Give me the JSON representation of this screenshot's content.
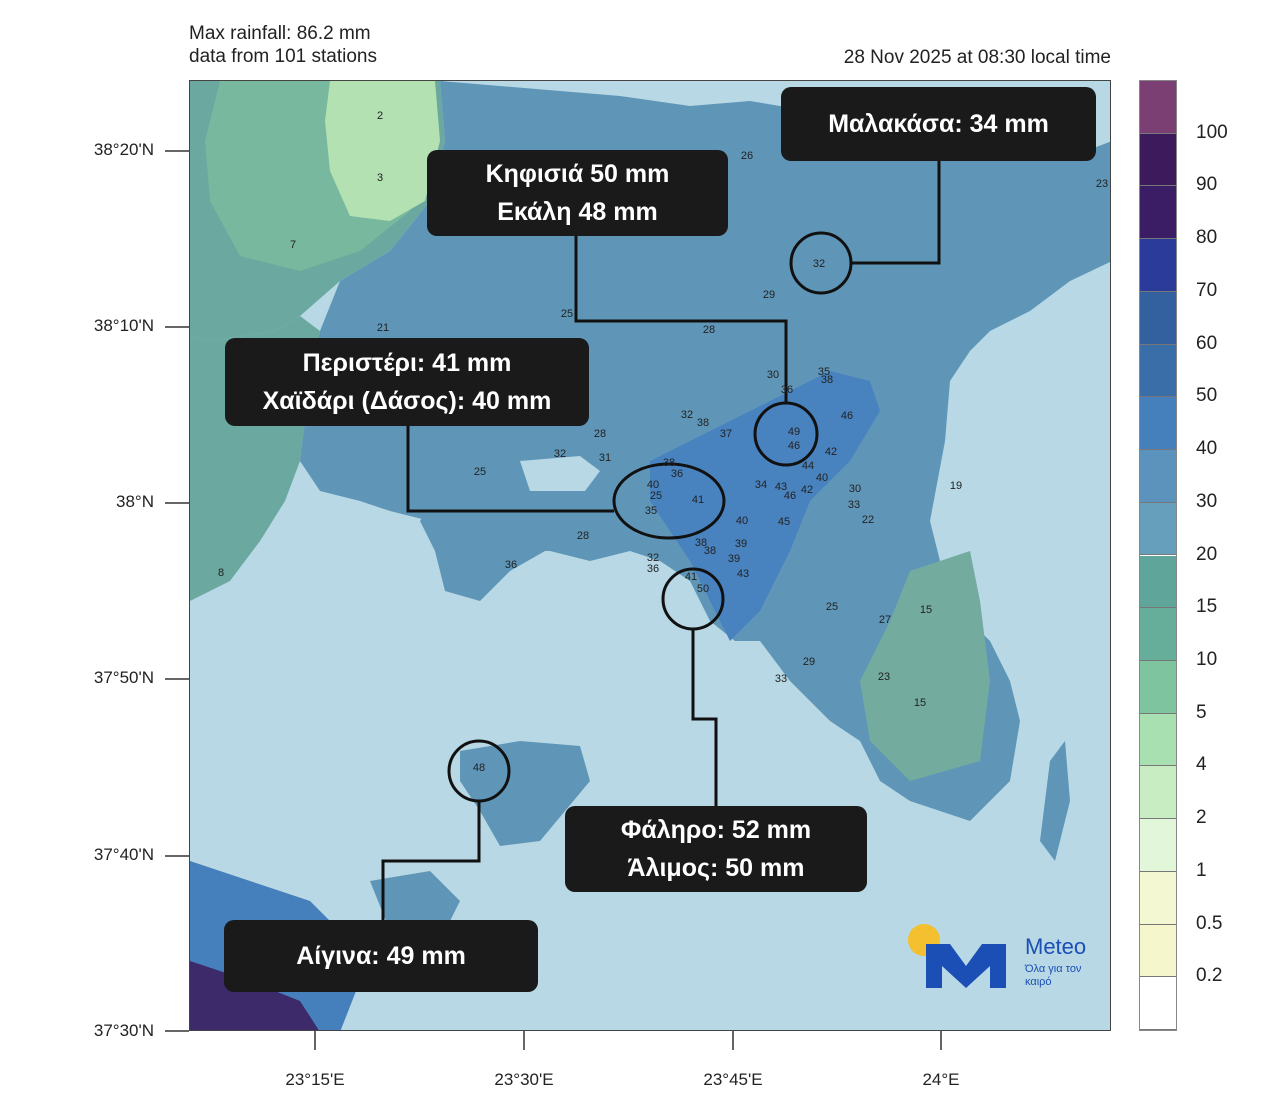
{
  "header": {
    "max_rainfall": "Max rainfall: 86.2 mm",
    "stations": "data from 101 stations",
    "timestamp": "28 Nov 2025 at 08:30 local time"
  },
  "axes": {
    "lat_labels": [
      "38°20'N",
      "38°10'N",
      "38°N",
      "37°50'N",
      "37°40'N",
      "37°30'N"
    ],
    "lon_labels": [
      "23°15'E",
      "23°30'E",
      "23°45'E",
      "24°E"
    ]
  },
  "callouts": {
    "malakasa": [
      "Μαλακάσα: 34 mm"
    ],
    "kifisia": [
      "Κηφισιά 50 mm",
      "Εκάλη 48 mm"
    ],
    "peristeri": [
      "Περιστέρι: 41 mm",
      "Χαϊδάρι (Δάσος): 40 mm"
    ],
    "faliro": [
      "Φάληρο: 52 mm",
      "Άλιμος: 50 mm"
    ],
    "aigina": [
      "Αίγινα: 49 mm"
    ]
  },
  "colorbar": {
    "labels": [
      "100",
      "90",
      "80",
      "70",
      "60",
      "50",
      "40",
      "30",
      "20",
      "15",
      "10",
      "5",
      "4",
      "2",
      "1",
      "0.5",
      "0.2"
    ],
    "colors": [
      "#7b3f74",
      "#3d1a5c",
      "#3b1d66",
      "#2a3b9a",
      "#33609f",
      "#3a6ea8",
      "#4680bc",
      "#5b93bd",
      "#669fbc",
      "#5fa59a",
      "#66ae9a",
      "#7ec49f",
      "#a9e0b2",
      "#c8edc3",
      "#e2f7da",
      "#f4f8d2",
      "#f5f6cb",
      "#ffffff"
    ]
  },
  "stations": [
    {
      "v": "2"
    },
    {
      "v": "3"
    },
    {
      "v": "7"
    },
    {
      "v": "26"
    },
    {
      "v": "23"
    },
    {
      "v": "32"
    },
    {
      "v": "29"
    },
    {
      "v": "21"
    },
    {
      "v": "25"
    },
    {
      "v": "28"
    },
    {
      "v": "30"
    },
    {
      "v": "35"
    },
    {
      "v": "38"
    },
    {
      "v": "32"
    },
    {
      "v": "38"
    },
    {
      "v": "37"
    },
    {
      "v": "28"
    },
    {
      "v": "36"
    },
    {
      "v": "46"
    },
    {
      "v": "49"
    },
    {
      "v": "46"
    },
    {
      "v": "42"
    },
    {
      "v": "44"
    },
    {
      "v": "40"
    },
    {
      "v": "32"
    },
    {
      "v": "31"
    },
    {
      "v": "25"
    },
    {
      "v": "38"
    },
    {
      "v": "36"
    },
    {
      "v": "40"
    },
    {
      "v": "25"
    },
    {
      "v": "41"
    },
    {
      "v": "35"
    },
    {
      "v": "34"
    },
    {
      "v": "43"
    },
    {
      "v": "46"
    },
    {
      "v": "42"
    },
    {
      "v": "30"
    },
    {
      "v": "33"
    },
    {
      "v": "22"
    },
    {
      "v": "19"
    },
    {
      "v": "40"
    },
    {
      "v": "45"
    },
    {
      "v": "28"
    },
    {
      "v": "36"
    },
    {
      "v": "38"
    },
    {
      "v": "38"
    },
    {
      "v": "39"
    },
    {
      "v": "39"
    },
    {
      "v": "32"
    },
    {
      "v": "43"
    },
    {
      "v": "8"
    },
    {
      "v": "36"
    },
    {
      "v": "41"
    },
    {
      "v": "50"
    },
    {
      "v": "25"
    },
    {
      "v": "15"
    },
    {
      "v": "27"
    },
    {
      "v": "29"
    },
    {
      "v": "33"
    },
    {
      "v": "23"
    },
    {
      "v": "15"
    },
    {
      "v": "48"
    }
  ],
  "logo": {
    "name": "Meteo",
    "slogan": "Όλα για τον καιρό"
  }
}
